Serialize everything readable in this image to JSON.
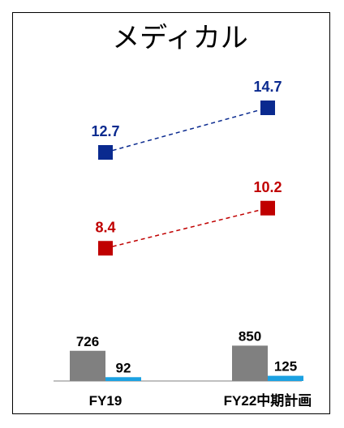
{
  "chart_data": {
    "type": "line+bar",
    "title": "メディカル",
    "categories": [
      "FY19",
      "FY22中期計画"
    ],
    "line_series": [
      {
        "values": [
          12.7,
          14.7
        ],
        "labels": [
          "12.7",
          "14.7"
        ],
        "color": "#0A2A8F"
      },
      {
        "values": [
          8.4,
          10.2
        ],
        "labels": [
          "8.4",
          "10.2"
        ],
        "color": "#C00000"
      }
    ],
    "bar_series": [
      {
        "values": [
          726,
          850
        ],
        "labels": [
          "726",
          "850"
        ],
        "color": "#808080"
      },
      {
        "values": [
          92,
          125
        ],
        "labels": [
          "92",
          "125"
        ],
        "color": "#1BA1E2"
      }
    ],
    "line_style": "dashed",
    "marker": "square",
    "grid": false,
    "legend": "none"
  }
}
